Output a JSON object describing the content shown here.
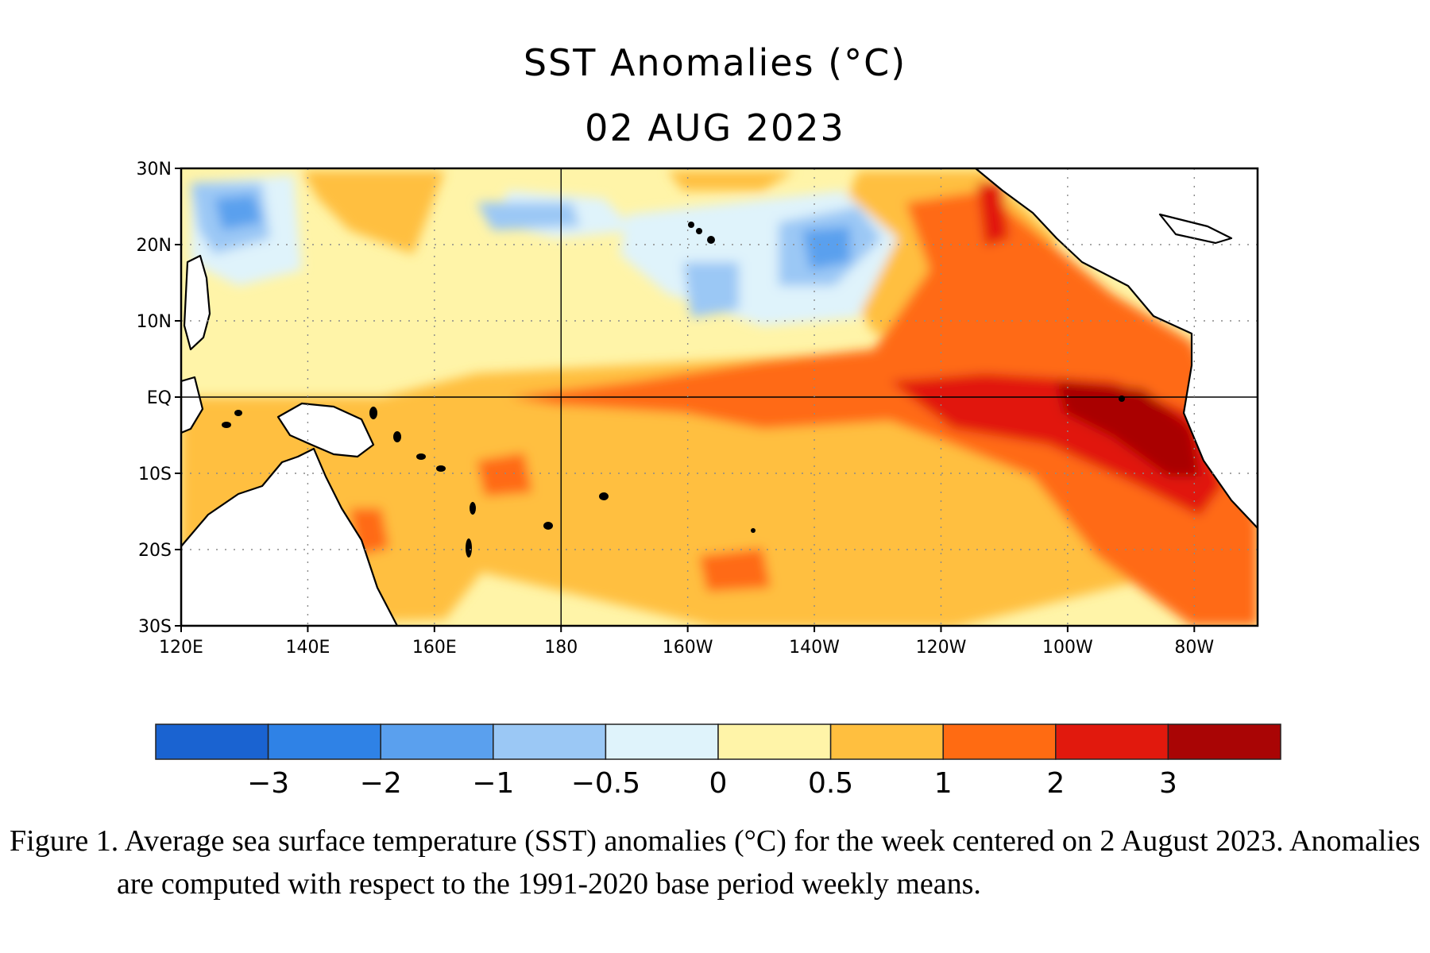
{
  "title": "SST Anomalies (°C)",
  "date": "02 AUG 2023",
  "caption": "Figure 1. Average sea surface temperature (SST) anomalies (°C) for the week centered on 2 August 2023.  Anomalies are computed with respect to the 1991-2020 base period weekly means.",
  "map": {
    "lon_range": [
      120,
      290
    ],
    "lat_range": [
      -30,
      30
    ],
    "lat_ticks": [
      {
        "value": 30,
        "label": "30N"
      },
      {
        "value": 20,
        "label": "20N"
      },
      {
        "value": 10,
        "label": "10N"
      },
      {
        "value": 0,
        "label": "EQ"
      },
      {
        "value": -10,
        "label": "10S"
      },
      {
        "value": -20,
        "label": "20S"
      },
      {
        "value": -30,
        "label": "30S"
      }
    ],
    "lon_ticks": [
      {
        "value": 120,
        "label": "120E"
      },
      {
        "value": 140,
        "label": "140E"
      },
      {
        "value": 160,
        "label": "160E"
      },
      {
        "value": 180,
        "label": "180"
      },
      {
        "value": 200,
        "label": "160W"
      },
      {
        "value": 220,
        "label": "140W"
      },
      {
        "value": 240,
        "label": "120W"
      },
      {
        "value": 260,
        "label": "100W"
      },
      {
        "value": 280,
        "label": "80W"
      }
    ]
  },
  "colorbar": {
    "colors": [
      "#1a63d1",
      "#2f82e6",
      "#5aa0ee",
      "#9bc8f5",
      "#dff3fb",
      "#fff4a8",
      "#ffbf3f",
      "#ff6b12",
      "#e1190d",
      "#a90505"
    ],
    "labels": [
      "−3",
      "−2",
      "−1",
      "−0.5",
      "0",
      "0.5",
      "1",
      "2",
      "3"
    ]
  }
}
